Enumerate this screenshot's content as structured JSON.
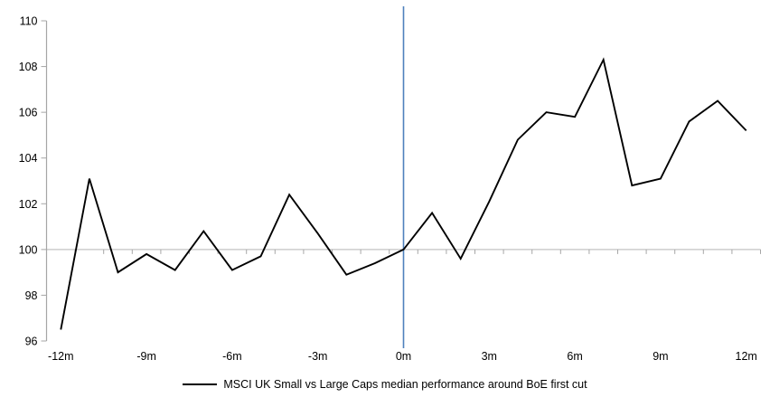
{
  "chart_data": {
    "type": "line",
    "title": "",
    "categories": [
      "-12m",
      "-11m",
      "-10m",
      "-9m",
      "-8m",
      "-7m",
      "-6m",
      "-5m",
      "-4m",
      "-3m",
      "-2m",
      "-1m",
      "0m",
      "1m",
      "2m",
      "3m",
      "4m",
      "5m",
      "6m",
      "7m",
      "8m",
      "9m",
      "10m",
      "11m",
      "12m"
    ],
    "series": [
      {
        "name": "MSCI UK Small vs Large Caps median performance around BoE first cut",
        "color": "#000000",
        "values": [
          96.5,
          103.1,
          99.0,
          99.8,
          99.1,
          100.8,
          99.1,
          99.7,
          102.4,
          100.7,
          98.9,
          99.4,
          100.0,
          101.6,
          99.6,
          102.1,
          104.8,
          106.0,
          105.8,
          108.3,
          102.8,
          103.1,
          105.6,
          106.5,
          105.2
        ]
      }
    ],
    "xlabel": "",
    "ylabel": "",
    "ylim": [
      96,
      110
    ],
    "ytick_step": 2,
    "ytick_labels": [
      "96",
      "98",
      "100",
      "102",
      "104",
      "106",
      "108",
      "110"
    ],
    "xtick_labels_shown": [
      "-12m",
      "-9m",
      "-6m",
      "-3m",
      "0m",
      "3m",
      "6m",
      "9m",
      "12m"
    ],
    "baseline_value": 100,
    "event_line": {
      "at_category": "0m",
      "color": "#4f81bd"
    },
    "axis_color": "#a6a6a6",
    "baseline_color": "#c3c3c3",
    "grid": "off",
    "legend_position": "bottom-center"
  }
}
